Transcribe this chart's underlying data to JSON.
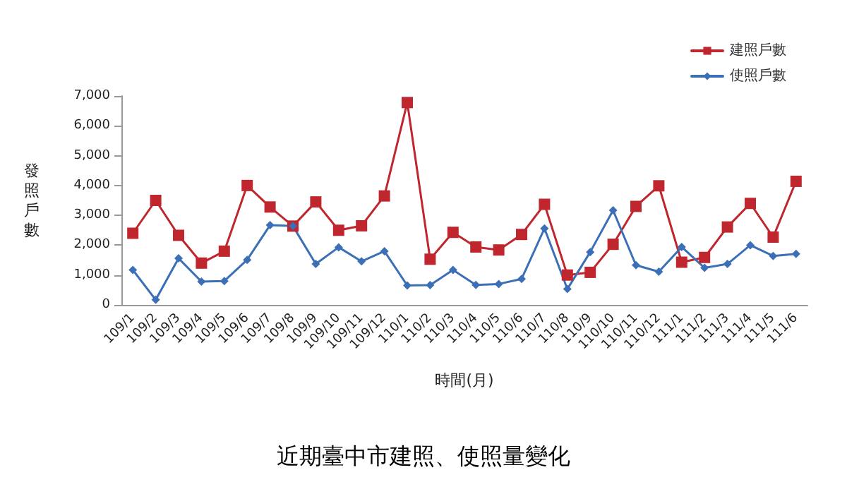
{
  "chart_data": {
    "type": "line",
    "title": "近期臺中市建照、使照量變化",
    "xlabel": "時間(月)",
    "ylabel": "發照戶數",
    "categories": [
      "109/1",
      "109/2",
      "109/3",
      "109/4",
      "109/5",
      "109/6",
      "109/7",
      "109/8",
      "109/9",
      "109/10",
      "109/11",
      "109/12",
      "110/1",
      "110/2",
      "110/3",
      "110/4",
      "110/5",
      "110/6",
      "110/7",
      "110/8",
      "110/9",
      "110/10",
      "110/11",
      "110/12",
      "111/1",
      "111/2",
      "111/3",
      "111/4",
      "111/5",
      "111/6"
    ],
    "series": [
      {
        "name": "建照戶數",
        "color": "#c0262d",
        "marker": "square",
        "values": [
          2400,
          3500,
          2330,
          1400,
          1800,
          4000,
          3280,
          2640,
          3450,
          2500,
          2650,
          3650,
          6780,
          1530,
          2430,
          1940,
          1840,
          2360,
          3370,
          1000,
          1090,
          2030,
          3300,
          3990,
          1430,
          1590,
          2610,
          3400,
          2270,
          4140
        ]
      },
      {
        "name": "使照戶數",
        "color": "#3b6fb6",
        "marker": "diamond",
        "values": [
          1170,
          170,
          1560,
          780,
          800,
          1510,
          2670,
          2640,
          1370,
          1930,
          1460,
          1800,
          650,
          660,
          1170,
          670,
          700,
          870,
          2560,
          530,
          1770,
          3170,
          1330,
          1110,
          1940,
          1240,
          1370,
          2000,
          1640,
          1710
        ]
      }
    ],
    "ylim": [
      0,
      7000
    ],
    "yticks": [
      0,
      {
        "value": 1000,
        "label": "1,000"
      },
      {
        "value": 2000,
        "label": "2,000"
      },
      {
        "value": 3000,
        "label": "3,000"
      },
      {
        "value": 4000,
        "label": "4,000"
      },
      {
        "value": 5000,
        "label": "5,000"
      },
      {
        "value": 6000,
        "label": "6,000"
      },
      {
        "value": 7000,
        "label": "7,000"
      }
    ],
    "grid": false,
    "legend": "top right",
    "line_style": "solid"
  }
}
